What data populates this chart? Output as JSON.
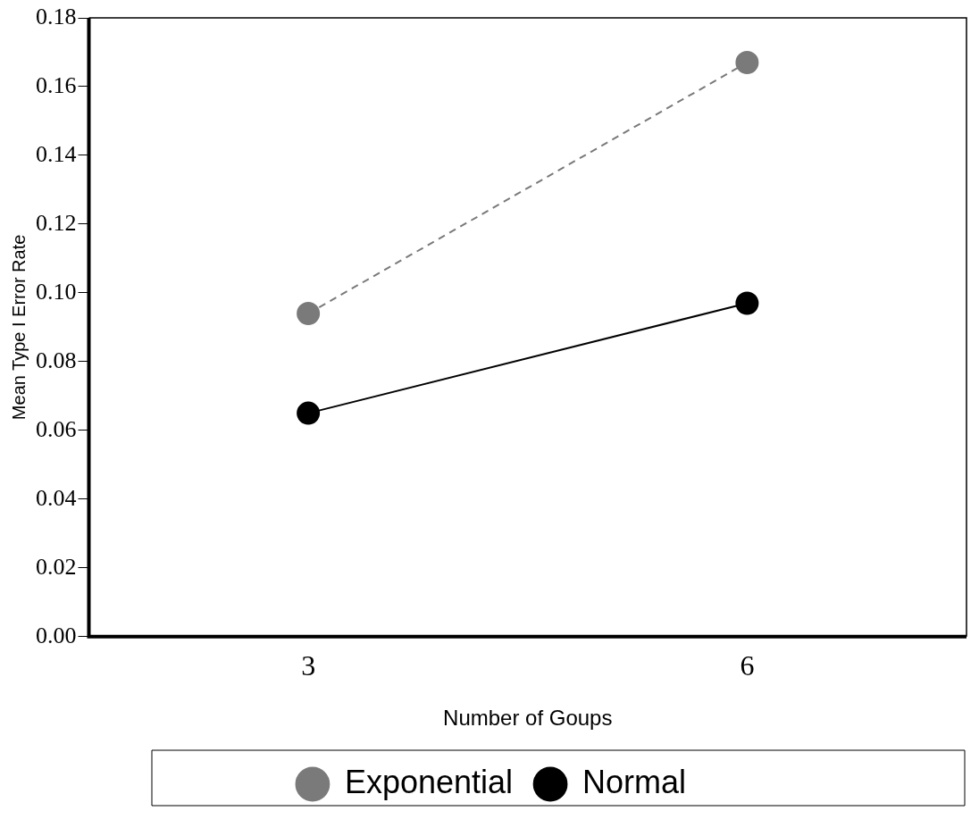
{
  "chart_data": {
    "type": "line",
    "xlabel": "Number of Goups",
    "ylabel": "Mean Type I Error Rate",
    "categories": [
      "3",
      "6"
    ],
    "series": [
      {
        "name": "Exponential",
        "color": "#7a7a7a",
        "values": [
          0.094,
          0.167
        ],
        "line_style": "dashed"
      },
      {
        "name": "Normal",
        "color": "#000000",
        "values": [
          0.065,
          0.097
        ],
        "line_style": "solid"
      }
    ],
    "ylim": [
      0,
      0.18
    ],
    "yticks": [
      {
        "value": 0,
        "label": "0.00"
      },
      0.02,
      0.04,
      0.06,
      0.08,
      {
        "value": 0.1,
        "label": "0.10"
      },
      0.12,
      0.14,
      0.16,
      0.18
    ],
    "grid": false,
    "legend": "bottom",
    "marker": "circle"
  }
}
